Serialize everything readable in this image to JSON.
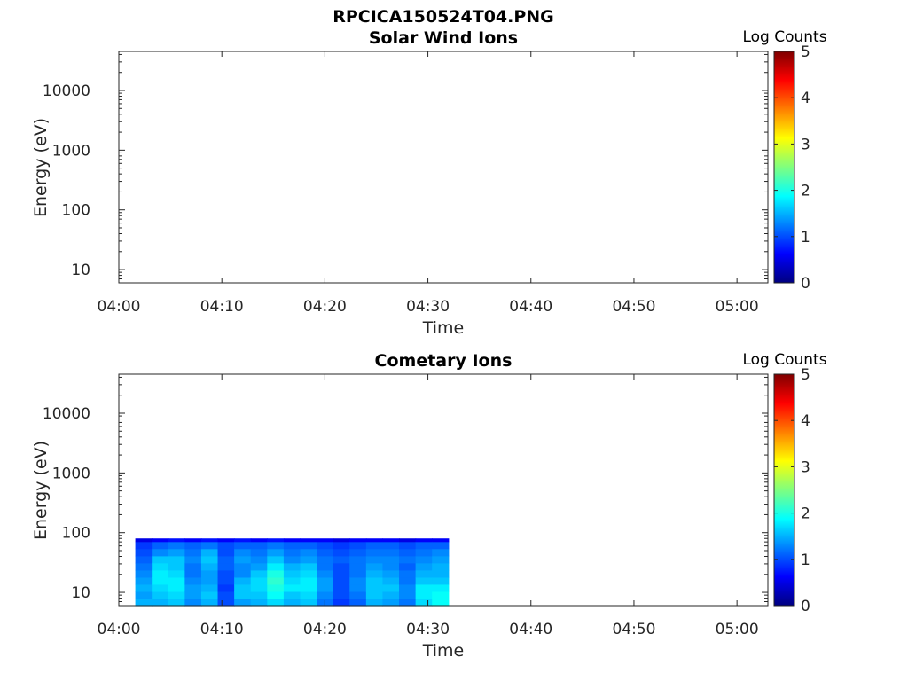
{
  "figure_title": "RPCICA150524T04.PNG",
  "colors": {
    "jet": [
      "#00007f",
      "#0000ff",
      "#007fff",
      "#00ffff",
      "#7fff7f",
      "#ffff00",
      "#ff7f00",
      "#ff0000",
      "#7f0000"
    ]
  },
  "chart_data": [
    {
      "type": "heatmap",
      "title": "Solar Wind Ions",
      "xlabel": "Time",
      "ylabel": "Energy (eV)",
      "x_ticks": [
        "04:00",
        "04:10",
        "04:20",
        "04:30",
        "04:40",
        "04:50",
        "05:00"
      ],
      "y_ticks": [
        "10",
        "100",
        "1000",
        "10000"
      ],
      "y_scale": "log",
      "ylim": [
        6,
        45000
      ],
      "xlim_minutes": [
        0,
        63
      ],
      "colorbar": {
        "label": "Log Counts",
        "ticks": [
          "0",
          "1",
          "2",
          "3",
          "4",
          "5"
        ],
        "range": [
          0,
          5
        ]
      },
      "data": []
    },
    {
      "type": "heatmap",
      "title": "Cometary Ions",
      "xlabel": "Time",
      "ylabel": "Energy (eV)",
      "x_ticks": [
        "04:00",
        "04:10",
        "04:20",
        "04:30",
        "04:40",
        "04:50",
        "05:00"
      ],
      "y_ticks": [
        "10",
        "100",
        "1000",
        "10000"
      ],
      "y_scale": "log",
      "ylim": [
        6,
        45000
      ],
      "xlim_minutes": [
        0,
        63
      ],
      "colorbar": {
        "label": "Log Counts",
        "ticks": [
          "0",
          "1",
          "2",
          "3",
          "4",
          "5"
        ],
        "range": [
          0,
          5
        ]
      },
      "energy_bins_eV": [
        6,
        7.9,
        10.4,
        13.7,
        18,
        23.7,
        31.2,
        41,
        54,
        71,
        80
      ],
      "time_start_minutes": 1.6,
      "time_step_minutes": 1.6,
      "data": [
        [
          1.5,
          1.4,
          1.5,
          1.4,
          1.3,
          1.2,
          1.1,
          1.0,
          0.9,
          0.5
        ],
        [
          1.5,
          1.6,
          1.7,
          1.8,
          1.8,
          1.7,
          1.6,
          1.3,
          1.1,
          0.6
        ],
        [
          1.6,
          1.7,
          1.8,
          1.8,
          1.7,
          1.6,
          1.6,
          1.4,
          1.2,
          0.7
        ],
        [
          1.3,
          1.4,
          1.4,
          1.3,
          1.2,
          1.2,
          1.3,
          1.2,
          1.1,
          0.6
        ],
        [
          1.5,
          1.6,
          1.5,
          1.4,
          1.4,
          1.5,
          1.6,
          1.5,
          1.2,
          0.7
        ],
        [
          1.0,
          1.0,
          0.9,
          1.0,
          1.0,
          1.1,
          1.1,
          1.0,
          1.0,
          0.6
        ],
        [
          1.4,
          1.6,
          1.6,
          1.5,
          1.3,
          1.3,
          1.4,
          1.3,
          1.1,
          0.7
        ],
        [
          1.5,
          1.6,
          1.7,
          1.7,
          1.6,
          1.4,
          1.3,
          1.2,
          1.1,
          0.6
        ],
        [
          1.7,
          1.9,
          2.0,
          2.1,
          2.0,
          1.8,
          1.6,
          1.4,
          1.2,
          0.7
        ],
        [
          1.5,
          1.6,
          1.8,
          1.7,
          1.6,
          1.5,
          1.3,
          1.2,
          1.1,
          0.6
        ],
        [
          1.6,
          1.7,
          1.8,
          1.8,
          1.7,
          1.6,
          1.4,
          1.3,
          1.1,
          0.6
        ],
        [
          1.2,
          1.3,
          1.4,
          1.4,
          1.3,
          1.2,
          1.2,
          1.1,
          1.0,
          0.6
        ],
        [
          0.9,
          1.0,
          1.0,
          1.0,
          1.0,
          1.0,
          1.1,
          1.0,
          0.9,
          0.5
        ],
        [
          1.1,
          1.2,
          1.3,
          1.3,
          1.2,
          1.2,
          1.2,
          1.1,
          1.0,
          0.6
        ],
        [
          1.5,
          1.6,
          1.6,
          1.6,
          1.5,
          1.4,
          1.3,
          1.2,
          1.1,
          0.6
        ],
        [
          1.4,
          1.5,
          1.6,
          1.5,
          1.4,
          1.3,
          1.3,
          1.2,
          1.1,
          0.6
        ],
        [
          1.2,
          1.3,
          1.3,
          1.2,
          1.2,
          1.1,
          1.2,
          1.1,
          1.0,
          0.5
        ],
        [
          1.7,
          1.8,
          1.8,
          1.6,
          1.5,
          1.4,
          1.3,
          1.2,
          1.1,
          0.6
        ],
        [
          1.9,
          1.9,
          1.8,
          1.6,
          1.5,
          1.5,
          1.4,
          1.3,
          1.1,
          0.6
        ]
      ]
    }
  ]
}
